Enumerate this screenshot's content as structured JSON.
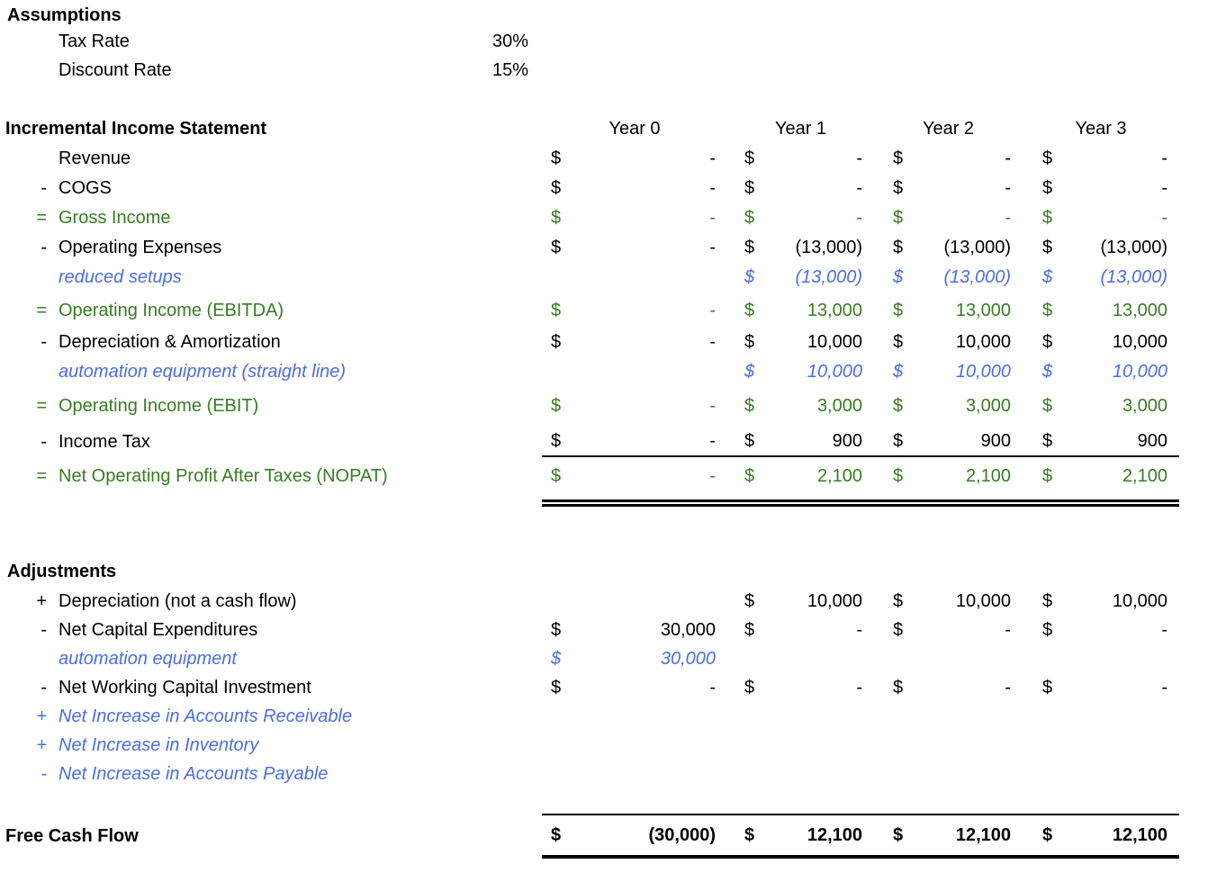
{
  "colors": {
    "subtotal_green": "#377d22",
    "annotation_blue": "#4a6de8"
  },
  "assumptions": {
    "title": "Assumptions",
    "items": [
      {
        "label": "Tax Rate",
        "value": "30%"
      },
      {
        "label": "Discount Rate",
        "value": "15%"
      }
    ]
  },
  "income_statement": {
    "title": "Incremental Income Statement",
    "columns": [
      "Year 0",
      "Year 1",
      "Year 2",
      "Year 3"
    ],
    "rows": [
      {
        "sign": "",
        "label": "Revenue",
        "style": "",
        "rule": "",
        "cells": [
          {
            "d": "$",
            "v": "-"
          },
          {
            "d": "$",
            "v": "-"
          },
          {
            "d": "$",
            "v": "-"
          },
          {
            "d": "$",
            "v": "-"
          }
        ]
      },
      {
        "sign": "-",
        "label": "COGS",
        "style": "",
        "rule": "",
        "cells": [
          {
            "d": "$",
            "v": "-"
          },
          {
            "d": "$",
            "v": "-"
          },
          {
            "d": "$",
            "v": "-"
          },
          {
            "d": "$",
            "v": "-"
          }
        ]
      },
      {
        "sign": "=",
        "label": "Gross Income",
        "style": "subtotal",
        "rule": "",
        "cells": [
          {
            "d": "$",
            "v": "-"
          },
          {
            "d": "$",
            "v": "-"
          },
          {
            "d": "$",
            "v": "-"
          },
          {
            "d": "$",
            "v": "-"
          }
        ]
      },
      {
        "sign": "-",
        "label": "Operating Expenses",
        "style": "",
        "rule": "",
        "cells": [
          {
            "d": "$",
            "v": "-"
          },
          {
            "d": "$",
            "v": "(13,000)"
          },
          {
            "d": "$",
            "v": "(13,000)"
          },
          {
            "d": "$",
            "v": "(13,000)"
          }
        ]
      },
      {
        "sign": "",
        "label": "reduced setups",
        "style": "annotation",
        "rule": "",
        "cells": [
          {
            "d": "",
            "v": ""
          },
          {
            "d": "$",
            "v": "(13,000)"
          },
          {
            "d": "$",
            "v": "(13,000)"
          },
          {
            "d": "$",
            "v": "(13,000)"
          }
        ]
      },
      {
        "sign": "=",
        "label": "Operating Income (EBITDA)",
        "style": "subtotal",
        "rule": "",
        "cells": [
          {
            "d": "$",
            "v": "-"
          },
          {
            "d": "$",
            "v": "13,000"
          },
          {
            "d": "$",
            "v": "13,000"
          },
          {
            "d": "$",
            "v": "13,000"
          }
        ]
      },
      {
        "sign": "-",
        "label": "Depreciation & Amortization",
        "style": "",
        "rule": "",
        "cells": [
          {
            "d": "$",
            "v": "-"
          },
          {
            "d": "$",
            "v": "10,000"
          },
          {
            "d": "$",
            "v": "10,000"
          },
          {
            "d": "$",
            "v": "10,000"
          }
        ]
      },
      {
        "sign": "",
        "label": "automation equipment (straight line)",
        "style": "annotation",
        "rule": "",
        "cells": [
          {
            "d": "",
            "v": ""
          },
          {
            "d": "$",
            "v": "10,000"
          },
          {
            "d": "$",
            "v": "10,000"
          },
          {
            "d": "$",
            "v": "10,000"
          }
        ]
      },
      {
        "sign": "=",
        "label": "Operating Income (EBIT)",
        "style": "subtotal",
        "rule": "",
        "cells": [
          {
            "d": "$",
            "v": "-"
          },
          {
            "d": "$",
            "v": "3,000"
          },
          {
            "d": "$",
            "v": "3,000"
          },
          {
            "d": "$",
            "v": "3,000"
          }
        ]
      },
      {
        "sign": "-",
        "label": "Income Tax",
        "style": "",
        "rule": "single",
        "cells": [
          {
            "d": "$",
            "v": "-"
          },
          {
            "d": "$",
            "v": "900"
          },
          {
            "d": "$",
            "v": "900"
          },
          {
            "d": "$",
            "v": "900"
          }
        ]
      },
      {
        "sign": "=",
        "label": "Net Operating Profit After Taxes (NOPAT)",
        "style": "subtotal",
        "rule": "double",
        "cells": [
          {
            "d": "$",
            "v": "-"
          },
          {
            "d": "$",
            "v": "2,100"
          },
          {
            "d": "$",
            "v": "2,100"
          },
          {
            "d": "$",
            "v": "2,100"
          }
        ]
      }
    ]
  },
  "adjustments": {
    "title": "Adjustments",
    "rows": [
      {
        "sign": "+",
        "label": "Depreciation (not a cash flow)",
        "style": "",
        "rule": "",
        "cells": [
          {
            "d": "",
            "v": ""
          },
          {
            "d": "$",
            "v": "10,000"
          },
          {
            "d": "$",
            "v": "10,000"
          },
          {
            "d": "$",
            "v": "10,000"
          }
        ]
      },
      {
        "sign": "-",
        "label": "Net Capital Expenditures",
        "style": "",
        "rule": "",
        "cells": [
          {
            "d": "$",
            "v": "30,000"
          },
          {
            "d": "$",
            "v": "-"
          },
          {
            "d": "$",
            "v": "-"
          },
          {
            "d": "$",
            "v": "-"
          }
        ]
      },
      {
        "sign": "",
        "label": "automation equipment",
        "style": "annotation",
        "rule": "",
        "cells": [
          {
            "d": "$",
            "v": "30,000"
          },
          {
            "d": "",
            "v": ""
          },
          {
            "d": "",
            "v": ""
          },
          {
            "d": "",
            "v": ""
          }
        ]
      },
      {
        "sign": "-",
        "label": "Net Working Capital Investment",
        "style": "",
        "rule": "",
        "cells": [
          {
            "d": "$",
            "v": "-"
          },
          {
            "d": "$",
            "v": "-"
          },
          {
            "d": "$",
            "v": "-"
          },
          {
            "d": "$",
            "v": "-"
          }
        ]
      },
      {
        "sign": "+",
        "label": "Net Increase in Accounts Receivable",
        "style": "annotation",
        "rule": "",
        "cells": [
          {
            "d": "",
            "v": ""
          },
          {
            "d": "",
            "v": ""
          },
          {
            "d": "",
            "v": ""
          },
          {
            "d": "",
            "v": ""
          }
        ]
      },
      {
        "sign": "+",
        "label": "Net Increase in Inventory",
        "style": "annotation",
        "rule": "",
        "cells": [
          {
            "d": "",
            "v": ""
          },
          {
            "d": "",
            "v": ""
          },
          {
            "d": "",
            "v": ""
          },
          {
            "d": "",
            "v": ""
          }
        ]
      },
      {
        "sign": "-",
        "label": "Net Increase in Accounts Payable",
        "style": "annotation",
        "rule": "",
        "cells": [
          {
            "d": "",
            "v": ""
          },
          {
            "d": "",
            "v": ""
          },
          {
            "d": "",
            "v": ""
          },
          {
            "d": "",
            "v": ""
          }
        ]
      }
    ]
  },
  "free_cash_flow": {
    "rows": [
      {
        "sign": "",
        "label": "Free Cash Flow",
        "style": "fcf",
        "rule": "fcf",
        "cells": [
          {
            "d": "$",
            "v": "(30,000)"
          },
          {
            "d": "$",
            "v": "12,100"
          },
          {
            "d": "$",
            "v": "12,100"
          },
          {
            "d": "$",
            "v": "12,100"
          }
        ]
      }
    ]
  }
}
